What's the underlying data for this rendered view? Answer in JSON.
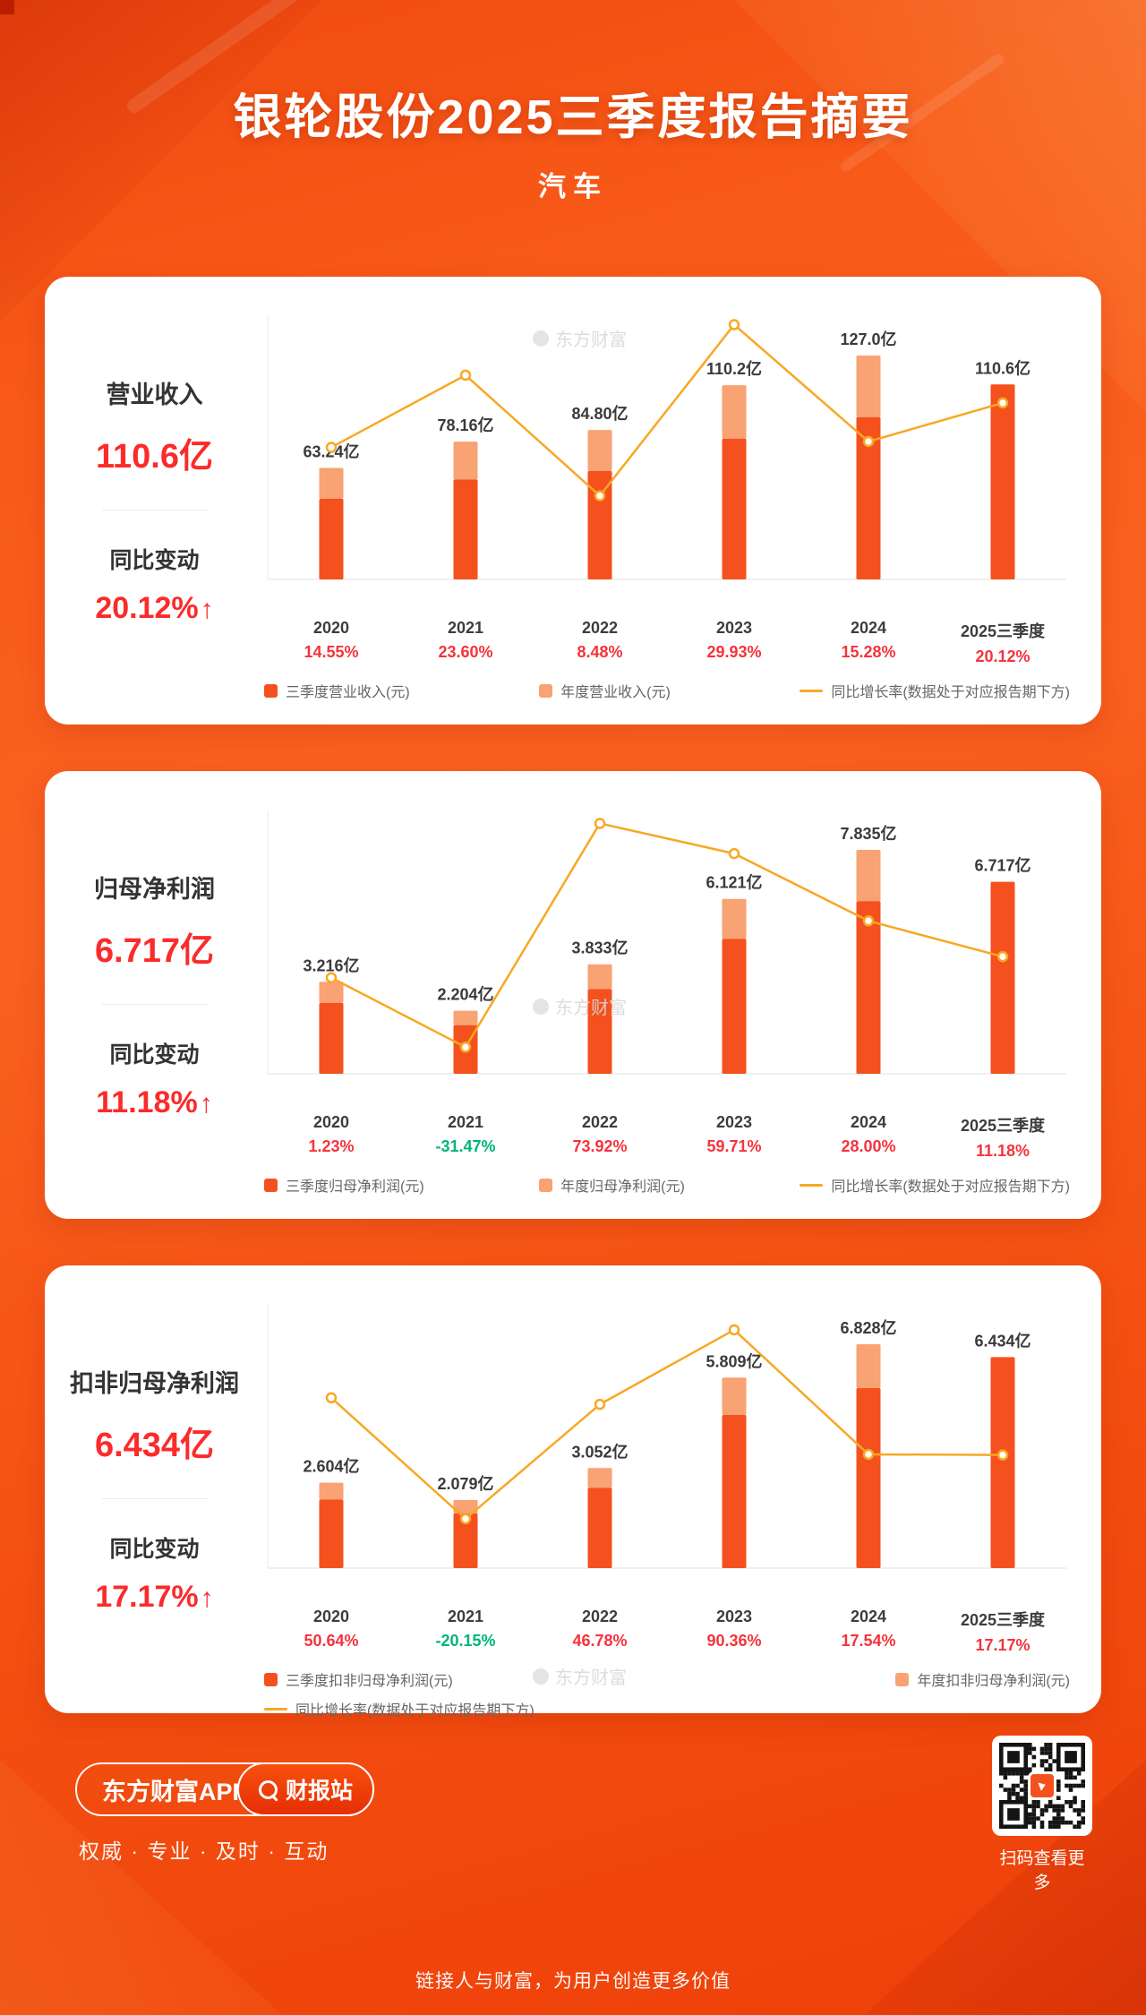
{
  "page": {
    "title": "银轮股份2025三季度报告摘要",
    "subtitle": "汽车",
    "footer": "链接人与财富，为用户创造更多价值"
  },
  "watermark_text": "东方财富",
  "icons": {
    "up_arrow": "↑",
    "search": "magnifier"
  },
  "colors": {
    "bar_q3": "#f4511e",
    "bar_annual": "#f9a273",
    "growth_line": "#f7a823",
    "label_dark": "#3a3a3a",
    "positive_red": "#f5333c",
    "negative_green": "#00b578",
    "value_red": "#fb2b2b"
  },
  "bottom_bar": {
    "app_name": "东方财富APP",
    "report_button": "财报站",
    "tagline": "权威 · 专业 · 及时 · 互动",
    "qr_caption": "扫码查看更多"
  },
  "cards": [
    {
      "title": "营业收入",
      "value": "110.6亿",
      "change_label": "同比变动",
      "change": "20.12%",
      "chart_index": 0
    },
    {
      "title": "归母净利润",
      "value": "6.717亿",
      "change_label": "同比变动",
      "change": "11.18%",
      "chart_index": 1
    },
    {
      "title": "扣非归母净利润",
      "value": "6.434亿",
      "change_label": "同比变动",
      "change": "17.17%",
      "chart_index": 2
    }
  ],
  "chart_data": [
    {
      "type": "bar+line",
      "title": "营业收入",
      "categories": [
        "2020",
        "2021",
        "2022",
        "2023",
        "2024",
        "2025三季度"
      ],
      "series": [
        {
          "name": "三季度营业收入(元)",
          "role": "q3_bar",
          "unit": "亿",
          "values": [
            45.8,
            56.7,
            61.5,
            79.9,
            92.1,
            110.6
          ]
        },
        {
          "name": "年度营业收入(元)",
          "role": "annual_bar",
          "unit": "亿",
          "values": [
            63.24,
            78.16,
            84.8,
            110.2,
            127.0,
            null
          ]
        },
        {
          "name": "同比增长率(数据处于对应报告期下方)",
          "role": "growth_line",
          "unit": "%",
          "values": [
            14.55,
            23.6,
            8.48,
            29.93,
            15.28,
            20.12
          ]
        }
      ],
      "bar_labels": [
        "63.24亿",
        "78.16亿",
        "84.80亿",
        "110.2亿",
        "127.0亿",
        "110.6亿"
      ],
      "growth_labels": [
        "14.55%",
        "23.60%",
        "8.48%",
        "29.93%",
        "15.28%",
        "20.12%"
      ],
      "line_axis_range": [
        -2,
        31
      ],
      "legend_rows": [
        [
          0,
          1,
          2
        ]
      ],
      "grid": false,
      "legend_position": "bottom"
    },
    {
      "type": "bar+line",
      "title": "归母净利润",
      "categories": [
        "2020",
        "2021",
        "2022",
        "2023",
        "2024",
        "2025三季度"
      ],
      "series": [
        {
          "name": "三季度归母净利润(元)",
          "role": "q3_bar",
          "unit": "亿",
          "values": [
            2.48,
            1.7,
            2.96,
            4.72,
            6.04,
            6.717
          ]
        },
        {
          "name": "年度归母净利润(元)",
          "role": "annual_bar",
          "unit": "亿",
          "values": [
            3.216,
            2.204,
            3.833,
            6.121,
            7.835,
            null
          ]
        },
        {
          "name": "同比增长率(数据处于对应报告期下方)",
          "role": "growth_line",
          "unit": "%",
          "values": [
            1.23,
            -31.47,
            73.92,
            59.71,
            28.0,
            11.18
          ]
        }
      ],
      "bar_labels": [
        "3.216亿",
        "2.204亿",
        "3.833亿",
        "6.121亿",
        "7.835亿",
        "6.717亿"
      ],
      "growth_labels": [
        "1.23%",
        "-31.47%",
        "73.92%",
        "59.71%",
        "28.00%",
        "11.18%"
      ],
      "line_axis_range": [
        -44,
        80
      ],
      "legend_rows": [
        [
          0,
          1,
          2
        ]
      ],
      "grid": false,
      "legend_position": "bottom"
    },
    {
      "type": "bar+line",
      "title": "扣非归母净利润",
      "categories": [
        "2020",
        "2021",
        "2022",
        "2023",
        "2024",
        "2025三季度"
      ],
      "series": [
        {
          "name": "三季度扣非归母净利润(元)",
          "role": "q3_bar",
          "unit": "亿",
          "values": [
            2.09,
            1.67,
            2.45,
            4.67,
            5.49,
            6.434
          ]
        },
        {
          "name": "年度扣非归母净利润(元)",
          "role": "annual_bar",
          "unit": "亿",
          "values": [
            2.604,
            2.079,
            3.052,
            5.809,
            6.828,
            null
          ]
        },
        {
          "name": "同比增长率(数据处于对应报告期下方)",
          "role": "growth_line",
          "unit": "%",
          "values": [
            50.64,
            -20.15,
            46.78,
            90.36,
            17.54,
            17.17
          ]
        }
      ],
      "bar_labels": [
        "2.604亿",
        "2.079亿",
        "3.052亿",
        "5.809亿",
        "6.828亿",
        "6.434亿"
      ],
      "growth_labels": [
        "50.64%",
        "-20.15%",
        "46.78%",
        "90.36%",
        "17.54%",
        "17.17%"
      ],
      "line_axis_range": [
        -49,
        105
      ],
      "legend_rows": [
        [
          0,
          1
        ],
        [
          2
        ]
      ],
      "grid": false,
      "legend_position": "bottom"
    }
  ]
}
